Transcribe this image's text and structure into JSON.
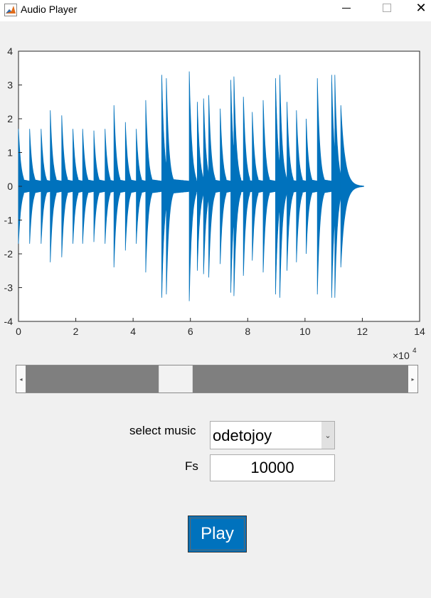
{
  "window": {
    "title": "Audio Player",
    "close_glyph": "✕"
  },
  "chart_data": {
    "type": "line",
    "title": "",
    "xlabel": "",
    "ylabel": "",
    "xlim": [
      0,
      140000
    ],
    "ylim": [
      -4,
      4
    ],
    "x_ticks": [
      "0",
      "2",
      "4",
      "6",
      "8",
      "10",
      "12",
      "14"
    ],
    "y_ticks": [
      "4",
      "3",
      "2",
      "1",
      "0",
      "-1",
      "-2",
      "-3",
      "-4"
    ],
    "x_exponent_base": "×10",
    "x_exponent_power": "4",
    "series_color": "#0072bd",
    "grid": false,
    "note_onsets": [
      0,
      3900,
      7900,
      11100,
      15100,
      19000,
      22400,
      26300,
      30200,
      33300,
      37300,
      41100,
      44400,
      50000,
      51600,
      59600,
      62400,
      64600,
      66400,
      70400,
      74100,
      75200,
      78500,
      81600,
      85400,
      89700,
      91200,
      93700,
      97000,
      100400,
      104300,
      109300,
      110400,
      112500
    ],
    "note_peaks": [
      1.7,
      1.7,
      1.7,
      2.25,
      2.1,
      1.7,
      1.7,
      1.65,
      1.7,
      2.4,
      1.9,
      1.7,
      2.55,
      3.3,
      3.2,
      3.4,
      2.5,
      2.6,
      2.7,
      2.3,
      3.15,
      3.25,
      2.65,
      2.2,
      2.55,
      3.2,
      3.3,
      2.5,
      2.25,
      2.0,
      3.2,
      3.3,
      3.3,
      2.4
    ]
  },
  "slider": {
    "value_fraction": 0.38
  },
  "controls": {
    "select_label": "select music",
    "select_value": "odetojoy",
    "fs_label": "Fs",
    "fs_value": "10000",
    "play_label": "Play"
  }
}
